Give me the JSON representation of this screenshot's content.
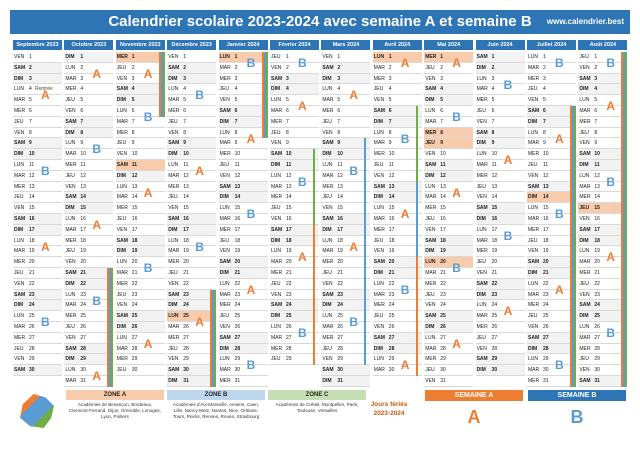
{
  "header": {
    "title": "Calendrier scolaire 2023-2024 avec semaine A et semaine B",
    "site": "www.calendrier.best"
  },
  "dayNames": [
    "DIM",
    "LUN",
    "MAR",
    "MER",
    "JEU",
    "VEN",
    "SAM"
  ],
  "months": [
    {
      "name": "Septembre 2023",
      "days": 30,
      "startDow": 5
    },
    {
      "name": "Octobre 2023",
      "days": 31,
      "startDow": 0
    },
    {
      "name": "Novembre 2023",
      "days": 30,
      "startDow": 3
    },
    {
      "name": "Décembre 2023",
      "days": 31,
      "startDow": 5
    },
    {
      "name": "Janvier 2024",
      "days": 31,
      "startDow": 1
    },
    {
      "name": "Février 2024",
      "days": 29,
      "startDow": 4
    },
    {
      "name": "Mars 2024",
      "days": 31,
      "startDow": 5
    },
    {
      "name": "Avril 2024",
      "days": 30,
      "startDow": 1
    },
    {
      "name": "Mai 2024",
      "days": 31,
      "startDow": 3
    },
    {
      "name": "Juin 2024",
      "days": 30,
      "startDow": 6
    },
    {
      "name": "Juillet 2024",
      "days": 31,
      "startDow": 1
    },
    {
      "name": "Août 2024",
      "days": 31,
      "startDow": 4
    }
  ],
  "notes": [
    {
      "month": 0,
      "day": 4,
      "text": "Rentrée"
    }
  ],
  "feries": [
    {
      "month": 2,
      "day": 1
    },
    {
      "month": 2,
      "day": 11
    },
    {
      "month": 3,
      "day": 25
    },
    {
      "month": 4,
      "day": 1
    },
    {
      "month": 7,
      "day": 1
    },
    {
      "month": 8,
      "day": 1
    },
    {
      "month": 8,
      "day": 8
    },
    {
      "month": 8,
      "day": 9
    },
    {
      "month": 8,
      "day": 20
    },
    {
      "month": 10,
      "day": 14
    },
    {
      "month": 11,
      "day": 15
    }
  ],
  "weekLetters": [
    {
      "month": 0,
      "letter": "A",
      "day": 4
    },
    {
      "month": 0,
      "letter": "B",
      "day": 11
    },
    {
      "month": 0,
      "letter": "A",
      "day": 18
    },
    {
      "month": 0,
      "letter": "B",
      "day": 25
    },
    {
      "month": 1,
      "letter": "A",
      "day": 2
    },
    {
      "month": 1,
      "letter": "B",
      "day": 9
    },
    {
      "month": 1,
      "letter": "A",
      "day": 16
    },
    {
      "month": 1,
      "letter": "B",
      "day": 23
    },
    {
      "month": 1,
      "letter": "A",
      "day": 30
    },
    {
      "month": 2,
      "letter": "A",
      "day": 2
    },
    {
      "month": 2,
      "letter": "B",
      "day": 6
    },
    {
      "month": 2,
      "letter": "A",
      "day": 13
    },
    {
      "month": 2,
      "letter": "B",
      "day": 20
    },
    {
      "month": 2,
      "letter": "A",
      "day": 27
    },
    {
      "month": 3,
      "letter": "B",
      "day": 4
    },
    {
      "month": 3,
      "letter": "A",
      "day": 11
    },
    {
      "month": 3,
      "letter": "B",
      "day": 18
    },
    {
      "month": 3,
      "letter": "A",
      "day": 25
    },
    {
      "month": 4,
      "letter": "B",
      "day": 1
    },
    {
      "month": 4,
      "letter": "A",
      "day": 8
    },
    {
      "month": 4,
      "letter": "B",
      "day": 15
    },
    {
      "month": 4,
      "letter": "A",
      "day": 22
    },
    {
      "month": 4,
      "letter": "B",
      "day": 29
    },
    {
      "month": 5,
      "letter": "B",
      "day": 1
    },
    {
      "month": 5,
      "letter": "A",
      "day": 5
    },
    {
      "month": 5,
      "letter": "B",
      "day": 12
    },
    {
      "month": 5,
      "letter": "A",
      "day": 19
    },
    {
      "month": 5,
      "letter": "B",
      "day": 26
    },
    {
      "month": 6,
      "letter": "A",
      "day": 4
    },
    {
      "month": 6,
      "letter": "B",
      "day": 11
    },
    {
      "month": 6,
      "letter": "A",
      "day": 18
    },
    {
      "month": 6,
      "letter": "B",
      "day": 25
    },
    {
      "month": 7,
      "letter": "A",
      "day": 1
    },
    {
      "month": 7,
      "letter": "B",
      "day": 8
    },
    {
      "month": 7,
      "letter": "A",
      "day": 15
    },
    {
      "month": 7,
      "letter": "B",
      "day": 22
    },
    {
      "month": 7,
      "letter": "A",
      "day": 29
    },
    {
      "month": 8,
      "letter": "A",
      "day": 1
    },
    {
      "month": 8,
      "letter": "B",
      "day": 6
    },
    {
      "month": 8,
      "letter": "A",
      "day": 13
    },
    {
      "month": 8,
      "letter": "B",
      "day": 20
    },
    {
      "month": 8,
      "letter": "A",
      "day": 27
    },
    {
      "month": 9,
      "letter": "B",
      "day": 3
    },
    {
      "month": 9,
      "letter": "A",
      "day": 10
    },
    {
      "month": 9,
      "letter": "B",
      "day": 17
    },
    {
      "month": 9,
      "letter": "A",
      "day": 24
    },
    {
      "month": 10,
      "letter": "B",
      "day": 1
    },
    {
      "month": 10,
      "letter": "A",
      "day": 8
    },
    {
      "month": 10,
      "letter": "B",
      "day": 15
    },
    {
      "month": 10,
      "letter": "A",
      "day": 22
    },
    {
      "month": 10,
      "letter": "B",
      "day": 29
    },
    {
      "month": 11,
      "letter": "B",
      "day": 1
    },
    {
      "month": 11,
      "letter": "A",
      "day": 5
    },
    {
      "month": 11,
      "letter": "B",
      "day": 12
    },
    {
      "month": 11,
      "letter": "A",
      "day": 19
    },
    {
      "month": 11,
      "letter": "B",
      "day": 26
    }
  ],
  "vacations": [
    {
      "month": 1,
      "from": 21,
      "to": 31,
      "zones": "abc"
    },
    {
      "month": 2,
      "from": 1,
      "to": 6,
      "zones": "abc"
    },
    {
      "month": 3,
      "from": 23,
      "to": 31,
      "zones": "abc"
    },
    {
      "month": 4,
      "from": 1,
      "to": 8,
      "zones": "abc"
    },
    {
      "month": 5,
      "from": 10,
      "to": 26,
      "zones": "c"
    },
    {
      "month": 5,
      "from": 17,
      "to": 29,
      "zones": "a"
    },
    {
      "month": 6,
      "from": 9,
      "to": 29,
      "zones": "b"
    },
    {
      "month": 7,
      "from": 6,
      "to": 21,
      "zones": "c"
    },
    {
      "month": 7,
      "from": 13,
      "to": 29,
      "zones": "b"
    },
    {
      "month": 7,
      "from": 20,
      "to": 30,
      "zones": "a"
    },
    {
      "month": 10,
      "from": 6,
      "to": 31,
      "zones": "abc"
    },
    {
      "month": 11,
      "from": 1,
      "to": 31,
      "zones": "abc"
    }
  ],
  "legend": {
    "zoneA": {
      "title": "ZONE A",
      "text": "Académies de Besançon, Bordeaux, Clermont-Ferrand, Dijon, Grenoble, Limoges, Lyon, Poitiers"
    },
    "zoneB": {
      "title": "ZONE B",
      "text": "Académies d'Aix-Marseille, Amiens, Caen, Lille, Nancy-Metz, Nantes, Nice, Orléans-Tours, Reims, Rennes, Rouen, Strasbourg"
    },
    "zoneC": {
      "title": "ZONE C",
      "text": "Académies de Créteil, Montpellier, Paris, Toulouse, Versailles"
    },
    "feries": {
      "title": "Jours fériés",
      "years": "2023-2024"
    },
    "semA": {
      "title": "SEMAINE A",
      "letter": "A"
    },
    "semB": {
      "title": "SEMAINE B",
      "letter": "B"
    }
  }
}
